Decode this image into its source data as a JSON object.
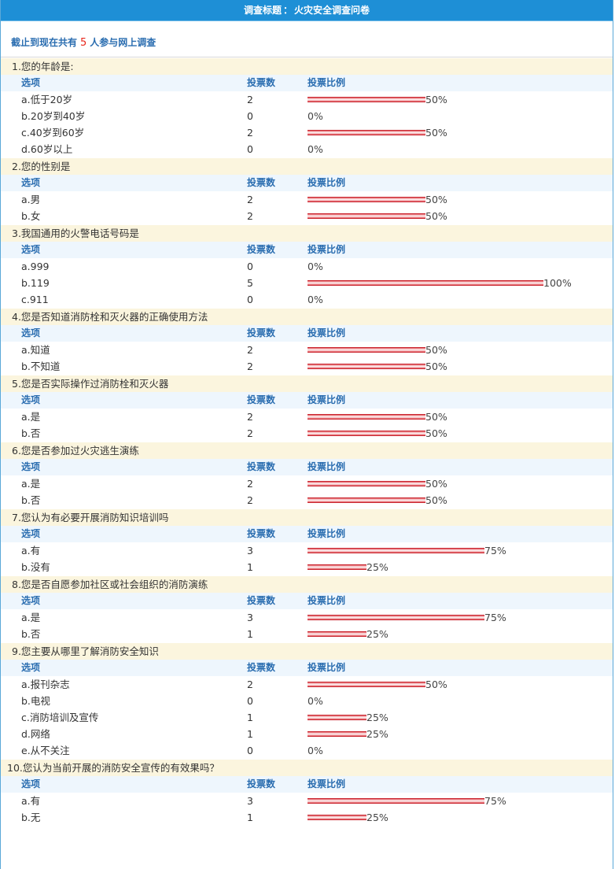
{
  "header": {
    "title_label": "调查标题",
    "separator": "：",
    "title": "火灾安全调查问卷"
  },
  "summary": {
    "prefix": "截止到现在共有",
    "count": "5",
    "suffix": "人参与网上调查"
  },
  "columns": {
    "option": "选项",
    "votes": "投票数",
    "ratio": "投票比例"
  },
  "colors": {
    "title_bar": "#1e8fd6",
    "question_bg": "#fbf5de",
    "column_header_bg": "#eef6fd",
    "column_header_text": "#2a6db0",
    "bar": "#c9242e",
    "count_highlight": "#e8271c"
  },
  "questions": [
    {
      "title": "1.您的年龄是:",
      "options": [
        {
          "label": "a.低于20岁",
          "votes": "2",
          "percent_text": "50%",
          "percent": 50
        },
        {
          "label": "b.20岁到40岁",
          "votes": "0",
          "percent_text": "0%",
          "percent": 0
        },
        {
          "label": "c.40岁到60岁",
          "votes": "2",
          "percent_text": "50%",
          "percent": 50
        },
        {
          "label": "d.60岁以上",
          "votes": "0",
          "percent_text": "0%",
          "percent": 0
        }
      ]
    },
    {
      "title": "2.您的性别是",
      "options": [
        {
          "label": "a.男",
          "votes": "2",
          "percent_text": "50%",
          "percent": 50
        },
        {
          "label": "b.女",
          "votes": "2",
          "percent_text": "50%",
          "percent": 50
        }
      ]
    },
    {
      "title": "3.我国通用的火警电话号码是",
      "options": [
        {
          "label": "a.999",
          "votes": "0",
          "percent_text": "0%",
          "percent": 0
        },
        {
          "label": "b.119",
          "votes": "5",
          "percent_text": "100%",
          "percent": 100
        },
        {
          "label": "c.911",
          "votes": "0",
          "percent_text": "0%",
          "percent": 0
        }
      ]
    },
    {
      "title": "4.您是否知道消防栓和灭火器的正确使用方法",
      "options": [
        {
          "label": "a.知道",
          "votes": "2",
          "percent_text": "50%",
          "percent": 50
        },
        {
          "label": "b.不知道",
          "votes": "2",
          "percent_text": "50%",
          "percent": 50
        }
      ]
    },
    {
      "title": "5.您是否实际操作过消防栓和灭火器",
      "options": [
        {
          "label": "a.是",
          "votes": "2",
          "percent_text": "50%",
          "percent": 50
        },
        {
          "label": "b.否",
          "votes": "2",
          "percent_text": "50%",
          "percent": 50
        }
      ]
    },
    {
      "title": "6.您是否参加过火灾逃生演练",
      "options": [
        {
          "label": "a.是",
          "votes": "2",
          "percent_text": "50%",
          "percent": 50
        },
        {
          "label": "b.否",
          "votes": "2",
          "percent_text": "50%",
          "percent": 50
        }
      ]
    },
    {
      "title": "7.您认为有必要开展消防知识培训吗",
      "options": [
        {
          "label": "a.有",
          "votes": "3",
          "percent_text": "75%",
          "percent": 75
        },
        {
          "label": "b.没有",
          "votes": "1",
          "percent_text": "25%",
          "percent": 25
        }
      ]
    },
    {
      "title": "8.您是否自愿参加社区或社会组织的消防演练",
      "options": [
        {
          "label": "a.是",
          "votes": "3",
          "percent_text": "75%",
          "percent": 75
        },
        {
          "label": "b.否",
          "votes": "1",
          "percent_text": "25%",
          "percent": 25
        }
      ]
    },
    {
      "title": "9.您主要从哪里了解消防安全知识",
      "options": [
        {
          "label": "a.报刊杂志",
          "votes": "2",
          "percent_text": "50%",
          "percent": 50
        },
        {
          "label": "b.电视",
          "votes": "0",
          "percent_text": "0%",
          "percent": 0
        },
        {
          "label": "c.消防培训及宣传",
          "votes": "1",
          "percent_text": "25%",
          "percent": 25
        },
        {
          "label": "d.网络",
          "votes": "1",
          "percent_text": "25%",
          "percent": 25
        },
        {
          "label": "e.从不关注",
          "votes": "0",
          "percent_text": "0%",
          "percent": 0
        }
      ]
    },
    {
      "title": "10.您认为当前开展的消防安全宣传的有效果吗？",
      "options": [
        {
          "label": "a.有",
          "votes": "3",
          "percent_text": "75%",
          "percent": 75
        },
        {
          "label": "b.无",
          "votes": "1",
          "percent_text": "25%",
          "percent": 25
        }
      ]
    }
  ]
}
